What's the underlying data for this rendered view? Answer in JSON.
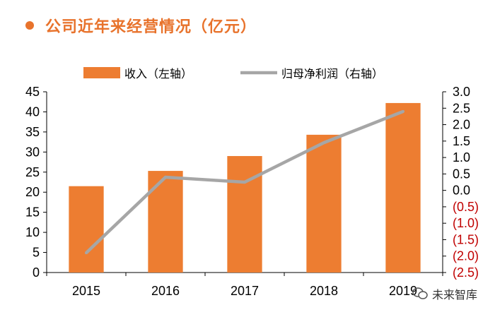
{
  "title": "公司近年来经营情况（亿元）",
  "watermark": "未来智库",
  "colors": {
    "bar": "#ED7D31",
    "line": "#A6A6A6",
    "title": "#E8732C",
    "negative": "#C00000"
  },
  "chart_data": {
    "type": "bar+line",
    "categories": [
      "2015",
      "2016",
      "2017",
      "2018",
      "2019"
    ],
    "series": [
      {
        "name": "收入（左轴）",
        "type": "bar",
        "axis": "left",
        "values": [
          21.5,
          25.3,
          29.0,
          34.3,
          42.2
        ]
      },
      {
        "name": "归母净利润（右轴）",
        "type": "line",
        "axis": "right",
        "values": [
          -1.9,
          0.4,
          0.25,
          1.45,
          2.4
        ]
      }
    ],
    "left_axis": {
      "ylim": [
        0,
        45
      ],
      "ticks": [
        "0",
        "5",
        "10",
        "15",
        "20",
        "25",
        "30",
        "35",
        "40",
        "45"
      ]
    },
    "right_axis": {
      "ylim": [
        -2.5,
        3.0
      ],
      "ticks": [
        "(2.5)",
        "(2.0)",
        "(1.5)",
        "(1.0)",
        "(0.5)",
        "0.0",
        "0.5",
        "1.0",
        "1.5",
        "2.0",
        "2.5",
        "3.0"
      ]
    },
    "legend_position": "top",
    "grid": false
  }
}
